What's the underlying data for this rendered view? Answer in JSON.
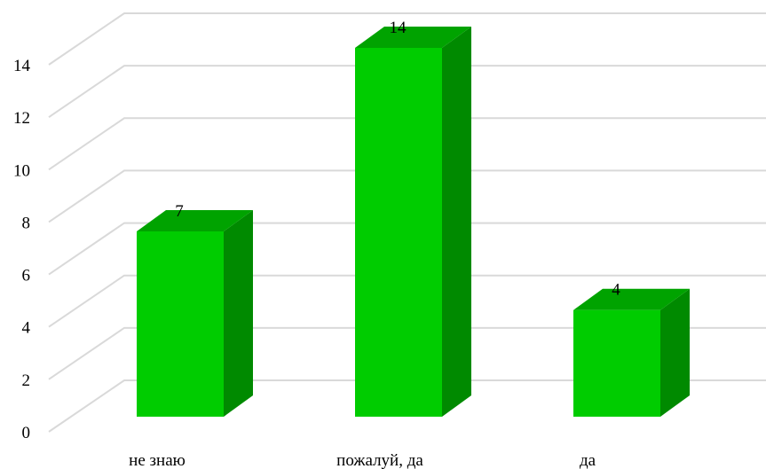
{
  "chart_data": {
    "type": "bar",
    "style": "3d-column",
    "categories": [
      "не знаю",
      "пожалуй, да",
      "да"
    ],
    "values": [
      7,
      14,
      4
    ],
    "data_labels": [
      "7",
      "14",
      "4"
    ],
    "ylim": [
      0,
      14
    ],
    "yticks": [
      0,
      2,
      4,
      6,
      8,
      10,
      12,
      14
    ],
    "grid": true,
    "legend": "none",
    "colors": {
      "front": "#00cc00",
      "side": "#008a00",
      "top": "#00a300",
      "grid": "#d9d9d9"
    }
  }
}
